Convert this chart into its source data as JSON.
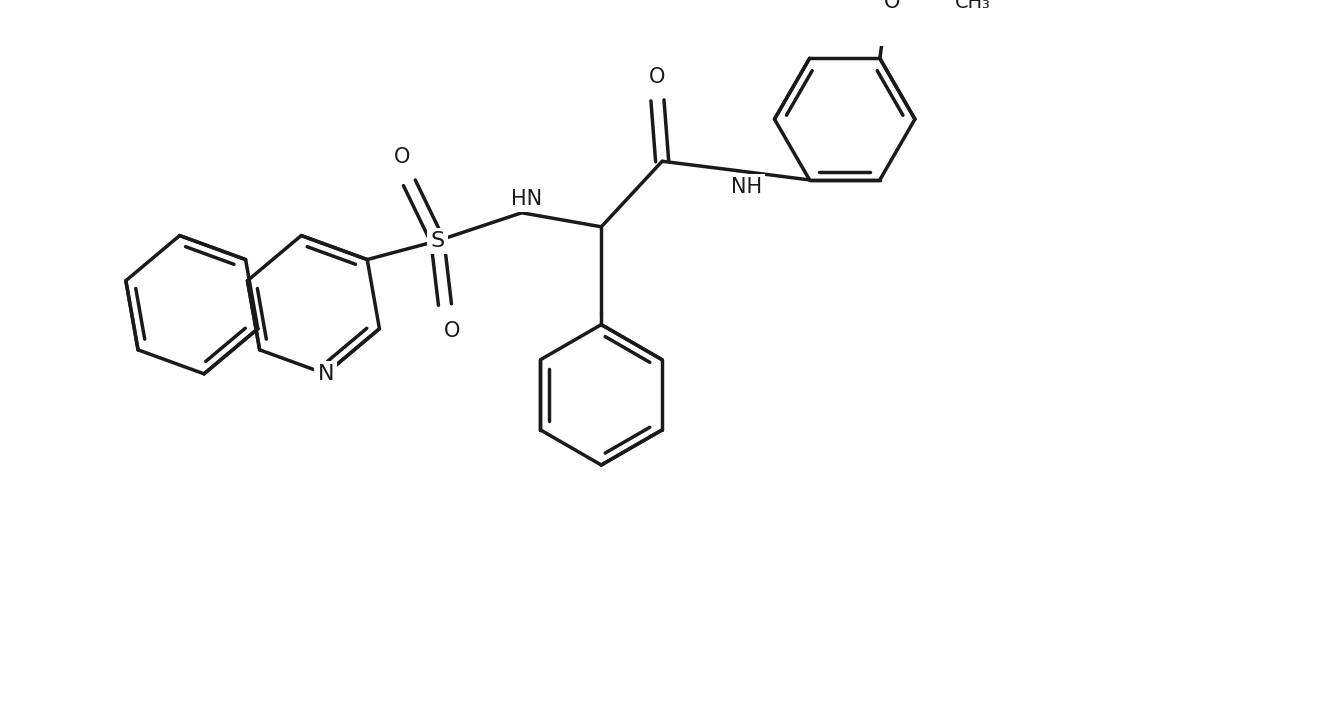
{
  "background_color": "#ffffff",
  "line_color": "#1a1a1a",
  "line_width": 2.5,
  "font_size": 15,
  "figsize": [
    13.18,
    7.26
  ],
  "dpi": 100,
  "xlim": [
    0,
    13.18
  ],
  "ylim": [
    0,
    7.26
  ]
}
